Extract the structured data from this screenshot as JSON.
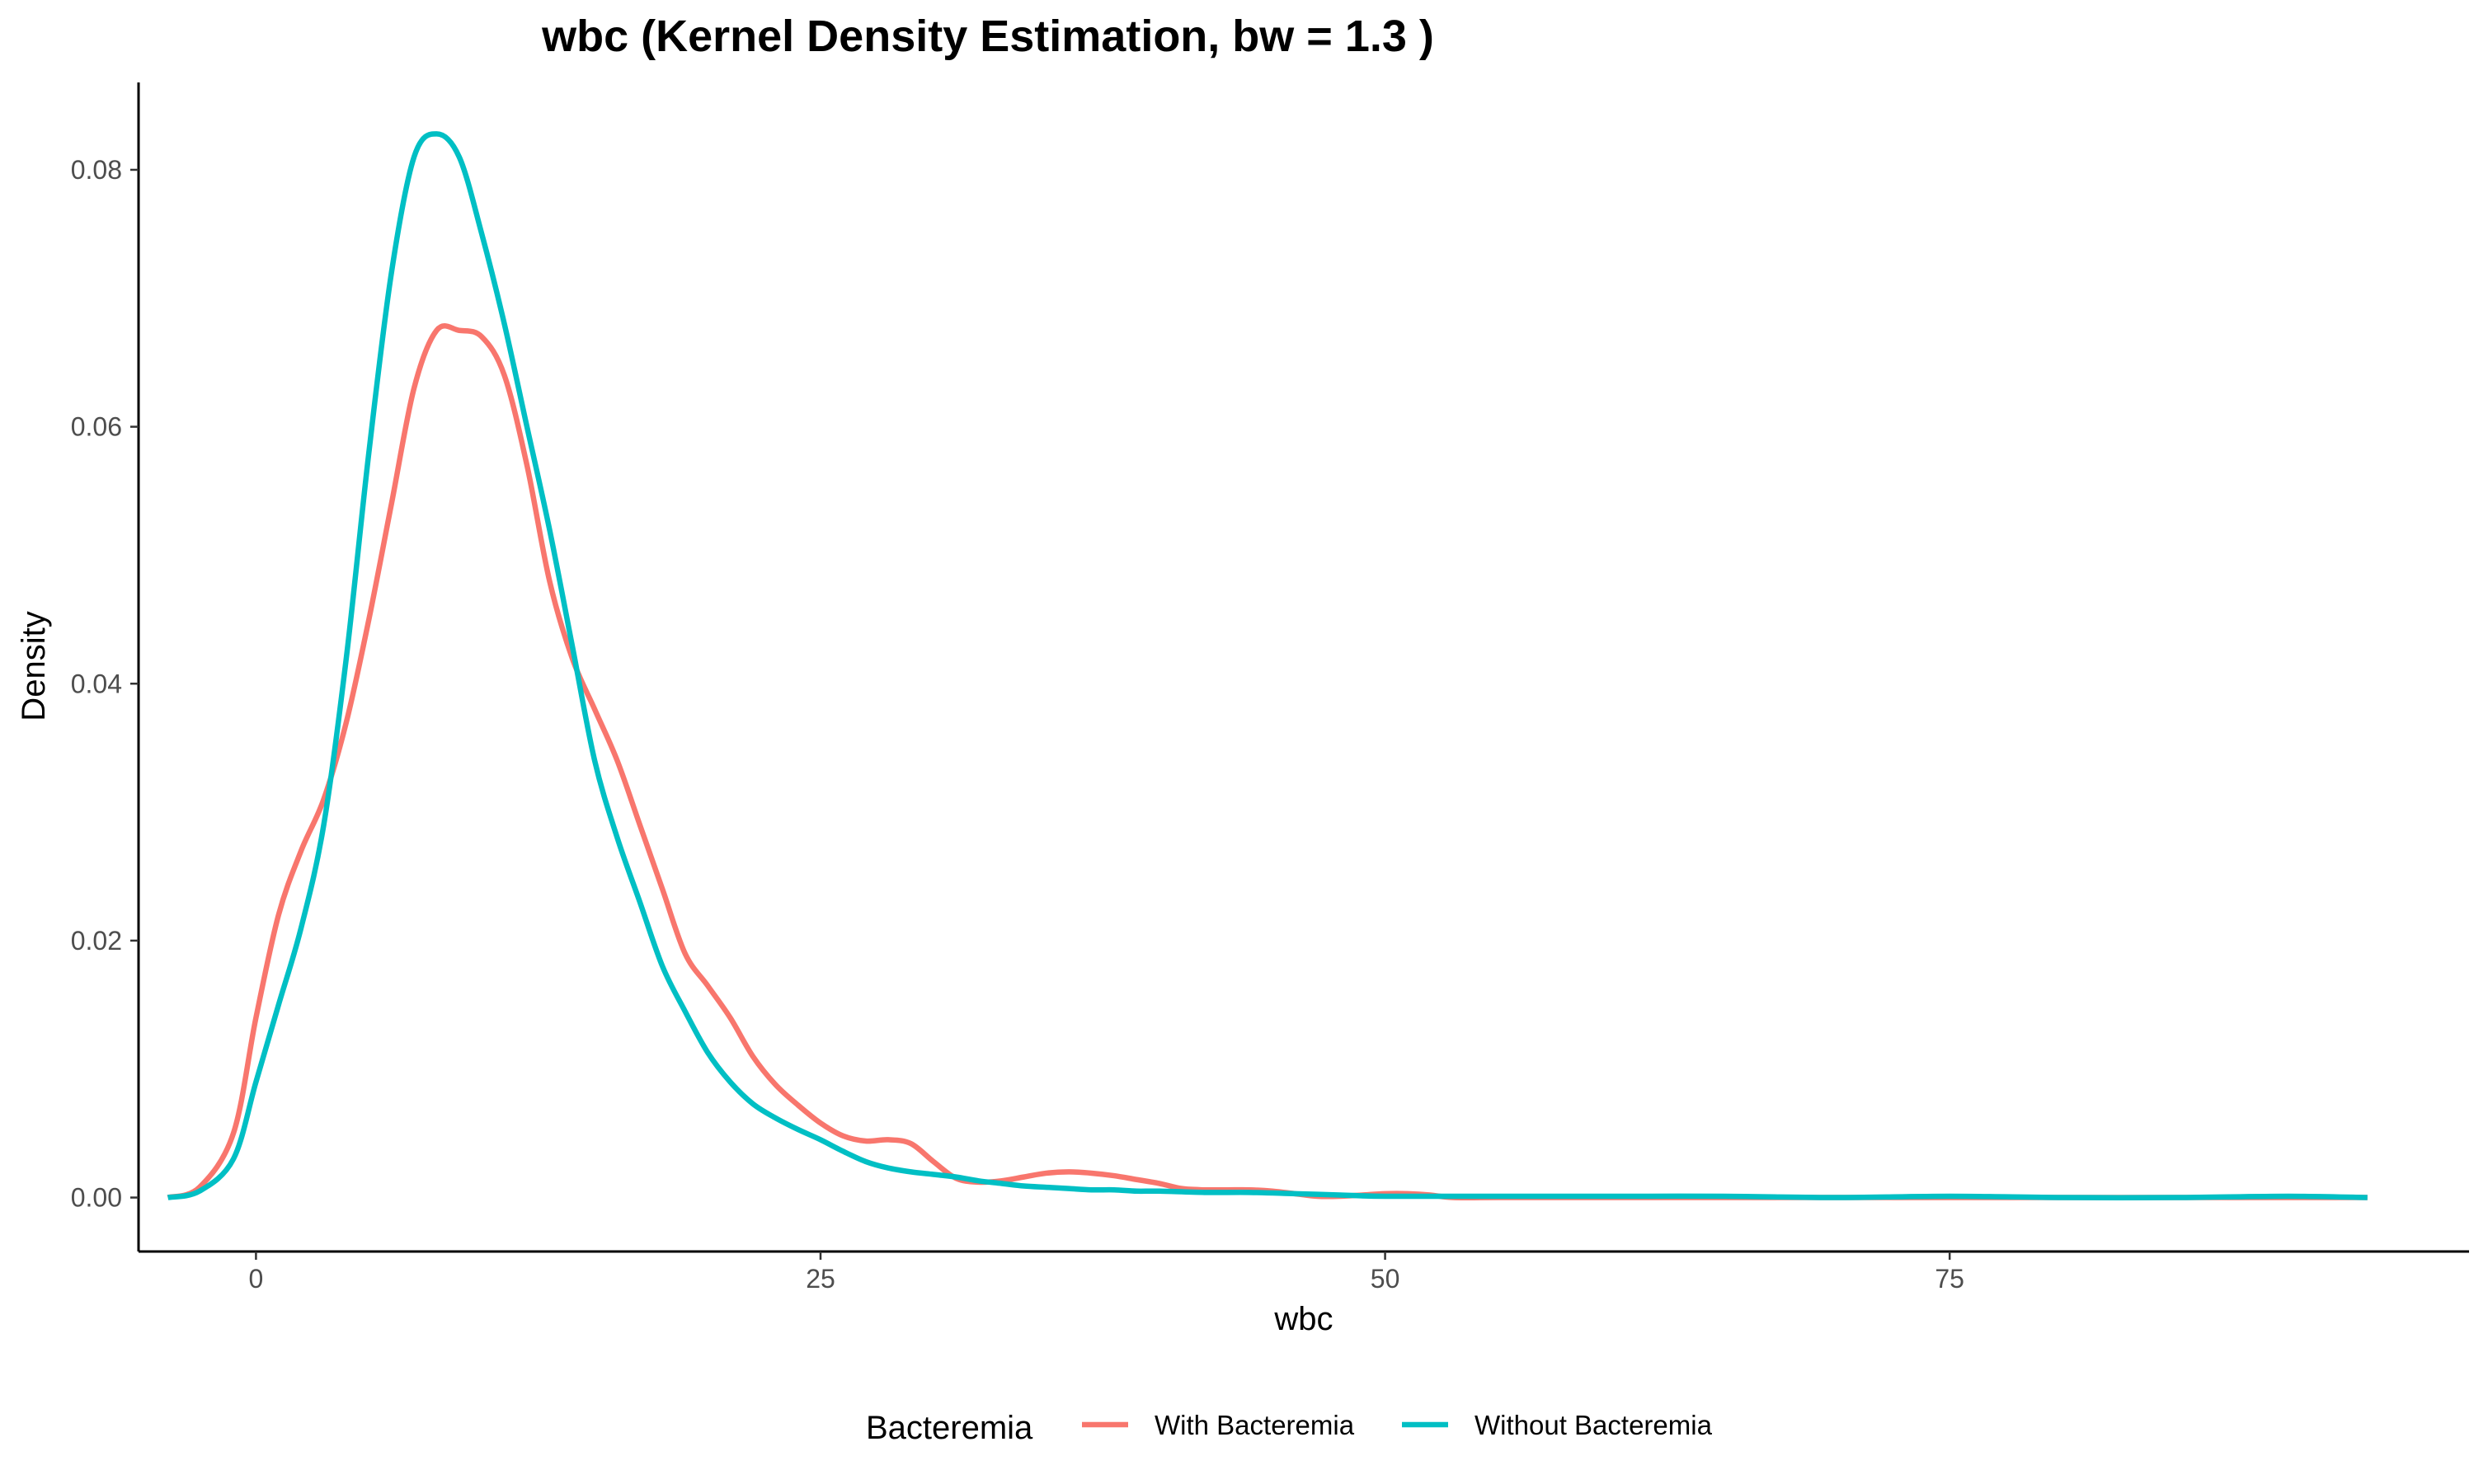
{
  "chart_data": {
    "type": "line",
    "title": "wbc (Kernel Density Estimation, bw = 1.3 )",
    "xlabel": "wbc",
    "ylabel": "Density",
    "xlim": [
      -5.2,
      98
    ],
    "ylim": [
      -0.0042,
      0.0868
    ],
    "x_ticks": [
      0,
      25,
      50,
      75
    ],
    "x_tick_labels": [
      "0",
      "25",
      "50",
      "75"
    ],
    "y_ticks": [
      0,
      0.02,
      0.04,
      0.06,
      0.08
    ],
    "y_tick_labels": [
      "0.00",
      "0.02",
      "0.04",
      "0.06",
      "0.08"
    ],
    "grid": false,
    "legend": {
      "title": "Bacteremia",
      "position": "bottom"
    },
    "series": [
      {
        "name": "With Bacteremia",
        "color": "#F8766D",
        "x": [
          -3.9,
          -2.5,
          -1.0,
          0.0,
          1.0,
          2.0,
          3.0,
          4.0,
          5.0,
          6.0,
          7.0,
          8.0,
          9.0,
          10.0,
          11.0,
          12.0,
          13.0,
          14.0,
          15.0,
          16.0,
          17.0,
          18.0,
          19.0,
          20.0,
          21.0,
          22.0,
          23.0,
          24.0,
          25.0,
          26.0,
          27.0,
          28.0,
          29.0,
          30.0,
          31.0,
          32.0,
          33.0,
          34.0,
          35.0,
          36.0,
          37.0,
          38.0,
          39.0,
          40.0,
          41.0,
          42.0,
          43.0,
          44.0,
          45.0,
          46.0,
          47.0,
          48.0,
          49.0,
          50.0,
          51.0,
          52.0,
          53.0,
          55.0,
          60.0,
          65.0,
          70.0,
          75.0,
          80.0,
          85.0,
          90.0,
          93.5
        ],
        "y": [
          0.0,
          0.0008,
          0.005,
          0.014,
          0.022,
          0.027,
          0.031,
          0.037,
          0.045,
          0.054,
          0.063,
          0.0675,
          0.0675,
          0.067,
          0.064,
          0.057,
          0.048,
          0.042,
          0.038,
          0.034,
          0.029,
          0.024,
          0.019,
          0.0165,
          0.014,
          0.011,
          0.0088,
          0.0072,
          0.0058,
          0.0048,
          0.0044,
          0.0045,
          0.0042,
          0.0028,
          0.0015,
          0.0012,
          0.0013,
          0.0016,
          0.0019,
          0.002,
          0.0019,
          0.0017,
          0.0014,
          0.0011,
          0.0007,
          0.0006,
          0.0006,
          0.0006,
          0.0005,
          0.0003,
          0.0001,
          0.0001,
          0.0002,
          0.0003,
          0.0003,
          0.0002,
          0.0,
          0.0,
          0.0,
          0.0,
          0.0,
          0.0,
          0.0,
          0.0,
          0.0,
          0.0
        ]
      },
      {
        "name": "Without Bacteremia",
        "color": "#00BFC4",
        "x": [
          -3.9,
          -2.5,
          -1.0,
          0.0,
          1.0,
          2.0,
          3.0,
          4.0,
          5.0,
          6.0,
          7.0,
          8.0,
          9.0,
          10.0,
          11.0,
          12.0,
          13.0,
          14.0,
          15.0,
          16.0,
          17.0,
          18.0,
          19.0,
          20.0,
          21.0,
          22.0,
          23.0,
          24.0,
          25.0,
          26.0,
          27.0,
          28.0,
          29.0,
          30.0,
          31.0,
          32.0,
          33.0,
          34.0,
          35.0,
          36.0,
          37.0,
          38.0,
          39.0,
          40.0,
          42.0,
          44.0,
          46.0,
          48.0,
          50.0,
          55.0,
          60.0,
          65.0,
          70.0,
          75.0,
          80.0,
          85.0,
          90.0,
          93.5
        ],
        "y": [
          0.0,
          0.0005,
          0.003,
          0.009,
          0.015,
          0.021,
          0.029,
          0.042,
          0.058,
          0.072,
          0.081,
          0.0828,
          0.081,
          0.075,
          0.068,
          0.06,
          0.052,
          0.043,
          0.034,
          0.028,
          0.023,
          0.018,
          0.0145,
          0.0113,
          0.009,
          0.0073,
          0.0062,
          0.0053,
          0.0045,
          0.0036,
          0.0028,
          0.0023,
          0.002,
          0.0018,
          0.0016,
          0.0013,
          0.0011,
          0.0009,
          0.0008,
          0.0007,
          0.0006,
          0.0006,
          0.0005,
          0.0005,
          0.0004,
          0.0004,
          0.0003,
          0.0002,
          0.0001,
          0.0001,
          0.0001,
          0.0001,
          0.0,
          0.0001,
          0.0,
          0.0,
          0.0001,
          0.0
        ]
      }
    ]
  }
}
